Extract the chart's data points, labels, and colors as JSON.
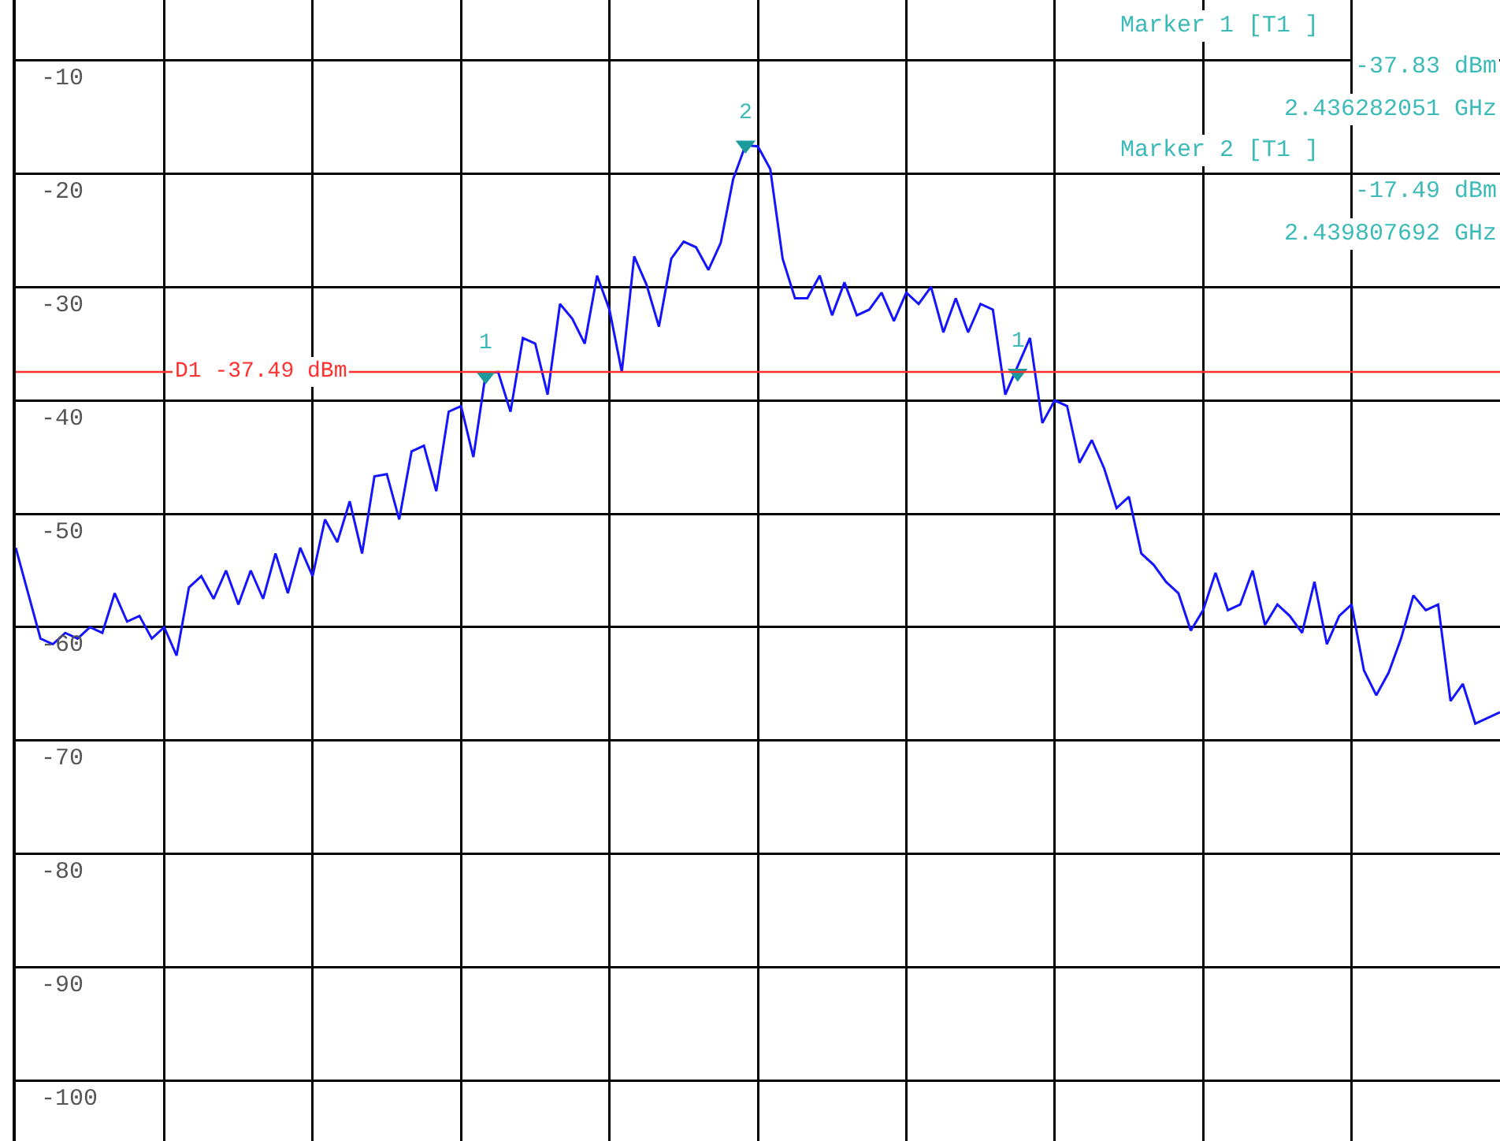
{
  "chart_data": {
    "type": "line",
    "categories": [
      null,
      null,
      null,
      null,
      null,
      null,
      null,
      null,
      null,
      null,
      null,
      null,
      null,
      null,
      null,
      null,
      null,
      null,
      null,
      null,
      null,
      null,
      null,
      null,
      null,
      null,
      null,
      null,
      null,
      null,
      null,
      null,
      null,
      null,
      null,
      null,
      null,
      null,
      null,
      null,
      null,
      null,
      null,
      null,
      null,
      null,
      null,
      null,
      null,
      null,
      null,
      null,
      null,
      null,
      null,
      null,
      null,
      null,
      null,
      null,
      null,
      null,
      null,
      null,
      null,
      null,
      null,
      null,
      null,
      null,
      null,
      null,
      null,
      null,
      null,
      null,
      null,
      null,
      null,
      null,
      null,
      null,
      null,
      null,
      null,
      null,
      null,
      null,
      null,
      null,
      null,
      null,
      null,
      null,
      null,
      null,
      null,
      null,
      null,
      null,
      null,
      null,
      null,
      null,
      null,
      null,
      null,
      null,
      null,
      null,
      null,
      null,
      null,
      null,
      null,
      null,
      null,
      null,
      null,
      null,
      null
    ],
    "series": [
      {
        "color": "#1414ff",
        "values": [
          -53,
          -57,
          -61,
          -61.5,
          -60.5,
          -61,
          -60,
          -60.5,
          -57,
          -59.5,
          -59,
          -61,
          -60,
          -62.5,
          -56.5,
          -55.5,
          -57.5,
          -55,
          -58,
          -55,
          -57.5,
          -53.5,
          -57,
          -53,
          -55.5,
          -50.5,
          -52.5,
          -48.9,
          -53.5,
          -46.7,
          -46.5,
          -50.5,
          -44.5,
          -44,
          -48,
          -41,
          -40.5,
          -45,
          -37.6,
          -37.5,
          -41,
          -34.5,
          -35,
          -39.5,
          -31.5,
          -32.8,
          -35,
          -29,
          -32,
          -37.5,
          -27.3,
          -29.8,
          -33.5,
          -27.5,
          -26,
          -26.5,
          -28.5,
          -26.1,
          -20.5,
          -17.5,
          -17.6,
          -19.6,
          -27.5,
          -31,
          -31,
          -29,
          -32.5,
          -29.6,
          -32.5,
          -32,
          -30.5,
          -33,
          -30.5,
          -31.5,
          -30,
          -34,
          -31,
          -34,
          -31.5,
          -32,
          -39.5,
          -37,
          -34.5,
          -42,
          -40,
          -40.5,
          -45.5,
          -43.5,
          -46,
          -49.5,
          -48.5,
          -53.5,
          -54.5,
          -56,
          -57,
          -60.3,
          -58.5,
          -55.2,
          -58.5,
          -58,
          -55,
          -59.8,
          -58,
          -59,
          -60.5,
          -56,
          -61.5,
          -59,
          -58,
          -63.8,
          -66,
          -64,
          -61,
          -57.2,
          -58.5,
          -58,
          -66.5,
          -65,
          -68.5,
          -68,
          -67.5
        ]
      },
      {
        "type": "scatter",
        "color": "#1a9a9a",
        "marker": "triangle",
        "values": [
          null,
          null,
          null,
          null,
          null,
          null,
          null,
          null,
          null,
          null,
          null,
          null,
          null,
          null,
          null,
          null,
          null,
          null,
          null,
          null,
          null,
          null,
          null,
          null,
          null,
          null,
          null,
          null,
          null,
          null,
          null,
          null,
          null,
          null,
          null,
          null,
          null,
          null,
          -37.83,
          null,
          null,
          null,
          null,
          null,
          null,
          null,
          null,
          null,
          null,
          null,
          null,
          null,
          null,
          null,
          null,
          null,
          null,
          null,
          null,
          -17.49,
          null,
          null,
          null,
          null,
          null,
          null,
          null,
          null,
          null,
          null,
          null,
          null,
          null,
          null,
          null,
          null,
          null,
          null,
          null,
          null,
          null,
          -37.6,
          null,
          null,
          null,
          null,
          null,
          null,
          null,
          null,
          null,
          null,
          null,
          null,
          null,
          null,
          null,
          null,
          null,
          null,
          null,
          null,
          null,
          null,
          null,
          null,
          null,
          null,
          null,
          null,
          null,
          null,
          null,
          null,
          null,
          null,
          null,
          null,
          null,
          null,
          null
        ]
      }
    ],
    "ylim": [
      -105.3,
      -4.7
    ],
    "yticks": [
      -10,
      -20,
      -30,
      -40,
      -50,
      -60,
      -70,
      -80,
      -90,
      -100
    ],
    "grid": true,
    "tick_labels": "y",
    "line_style": "solid",
    "marker": "none",
    "ref_lines": [
      {
        "axis": "y",
        "value": -37.49,
        "label": "D1 -37.49 dBm",
        "color": "#ff3030"
      }
    ],
    "annotations": [
      "Marker 1 [T1 ]",
      "-37.83 dBm",
      "2.436282051 GHz",
      "Marker 2 [T1 ]",
      "-17.49 dBm",
      "2.439807692 GHz",
      {
        "text": "1",
        "y": -37.83
      },
      {
        "text": "2",
        "y": -17.49
      },
      {
        "text": "1",
        "y": -37.6
      }
    ]
  }
}
